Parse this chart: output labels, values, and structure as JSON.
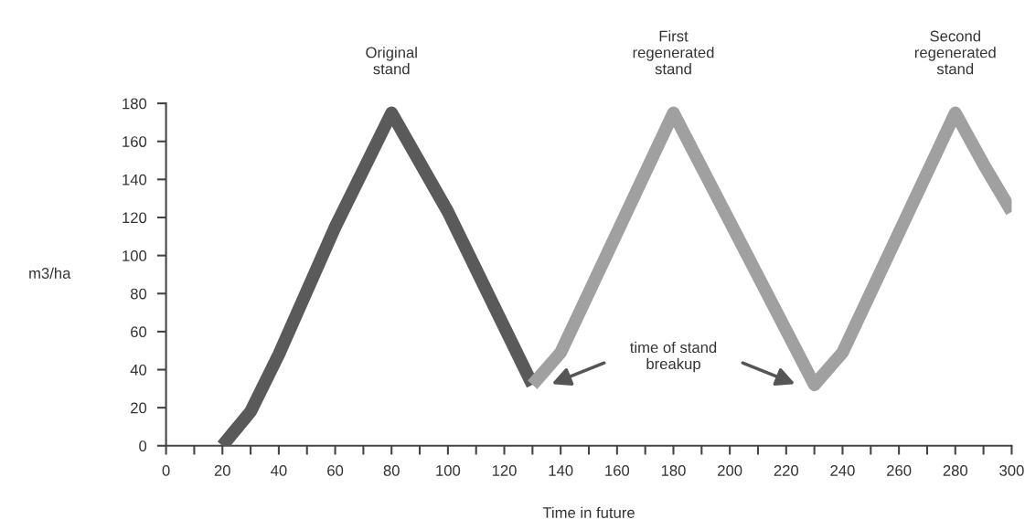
{
  "chart_data": {
    "type": "line",
    "xlabel": "Time in future",
    "ylabel": "m3/ha",
    "xlim": [
      0,
      300
    ],
    "ylim": [
      0,
      180
    ],
    "xticks": [
      0,
      {
        "value": 10,
        "label": null
      },
      20,
      {
        "value": 30,
        "label": null
      },
      40,
      {
        "value": 50,
        "label": null
      },
      60,
      {
        "value": 70,
        "label": null
      },
      80,
      {
        "value": 90,
        "label": null
      },
      100,
      {
        "value": 110,
        "label": null
      },
      120,
      {
        "value": 130,
        "label": null
      },
      140,
      {
        "value": 150,
        "label": null
      },
      160,
      {
        "value": 170,
        "label": null
      },
      180,
      {
        "value": 190,
        "label": null
      },
      200,
      {
        "value": 210,
        "label": null
      },
      220,
      {
        "value": 230,
        "label": null
      },
      240,
      {
        "value": 250,
        "label": null
      },
      260,
      {
        "value": 270,
        "label": null
      },
      280,
      {
        "value": 290,
        "label": null
      },
      300
    ],
    "yticks": [
      0,
      20,
      40,
      60,
      80,
      100,
      120,
      140,
      160,
      180
    ],
    "grid": false,
    "legend": false,
    "marker": "none",
    "line_style": "solid",
    "series": [
      {
        "color": "#5a5a5a",
        "x": [
          20,
          30,
          40,
          60,
          80,
          100,
          130
        ],
        "values": [
          0,
          18,
          48,
          115,
          175,
          123,
          32
        ]
      },
      {
        "color": "#a0a0a0",
        "x": [
          130,
          140,
          180,
          230,
          240,
          280,
          290,
          300
        ],
        "values": [
          32,
          49,
          175,
          32,
          49,
          175,
          148,
          123
        ]
      }
    ],
    "annotations": [
      {
        "text": "Original\nstand",
        "x": 80,
        "y": 175
      },
      {
        "text": "First\nregenerated\nstand",
        "x": 180,
        "y": 175
      },
      {
        "text": "Second\nregenerated\nstand",
        "x": 280,
        "y": 175
      },
      "time of stand\nbreakup"
    ]
  }
}
